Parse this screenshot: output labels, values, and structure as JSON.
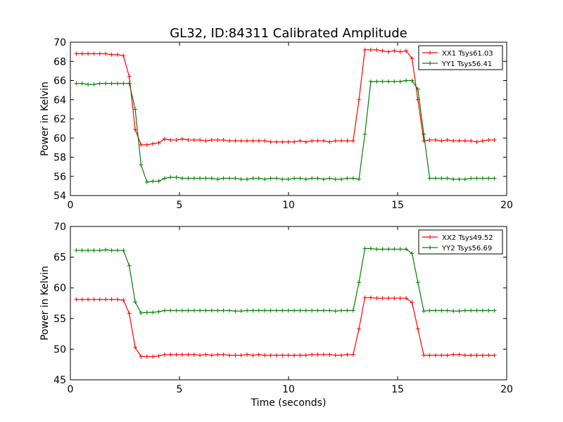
{
  "title": "GL32, ID:84311 Calibrated Amplitude",
  "chart_data": [
    {
      "type": "line",
      "xlabel": "",
      "ylabel": "Power in Kelvin",
      "xlim": [
        0,
        20
      ],
      "ylim": [
        54,
        70
      ],
      "x_ticks": [
        "0",
        "5",
        "10",
        "15",
        "20"
      ],
      "y_ticks": [
        "54",
        "56",
        "58",
        "60",
        "62",
        "64",
        "66",
        "68",
        "70"
      ],
      "grid": false,
      "legend_position": "top-right",
      "x": [
        0.27,
        0.54,
        0.81,
        1.08,
        1.35,
        1.62,
        1.89,
        2.16,
        2.43,
        2.7,
        2.97,
        3.24,
        3.51,
        3.78,
        4.05,
        4.32,
        4.59,
        4.86,
        5.13,
        5.4,
        5.67,
        5.94,
        6.21,
        6.48,
        6.75,
        7.02,
        7.29,
        7.56,
        7.83,
        8.1,
        8.37,
        8.64,
        8.91,
        9.18,
        9.45,
        9.72,
        9.99,
        10.26,
        10.53,
        10.8,
        11.07,
        11.34,
        11.61,
        11.88,
        12.15,
        12.42,
        12.69,
        12.96,
        13.23,
        13.5,
        13.77,
        14.04,
        14.31,
        14.58,
        14.85,
        15.12,
        15.39,
        15.66,
        15.93,
        16.2,
        16.47,
        16.74,
        17.01,
        17.28,
        17.55,
        17.82,
        18.09,
        18.36,
        18.63,
        18.9,
        19.17,
        19.44
      ],
      "series": [
        {
          "name": "XX1 Tsys61.03",
          "color": "#ff0000",
          "values": [
            68.8,
            68.8,
            68.8,
            68.8,
            68.8,
            68.8,
            68.7,
            68.7,
            68.6,
            66.4,
            60.9,
            59.3,
            59.3,
            59.4,
            59.5,
            59.9,
            59.8,
            59.8,
            59.9,
            59.8,
            59.8,
            59.8,
            59.7,
            59.8,
            59.8,
            59.8,
            59.7,
            59.7,
            59.7,
            59.7,
            59.7,
            59.7,
            59.7,
            59.6,
            59.6,
            59.6,
            59.6,
            59.6,
            59.7,
            59.6,
            59.7,
            59.7,
            59.7,
            59.6,
            59.7,
            59.7,
            59.7,
            59.7,
            64.0,
            69.2,
            69.2,
            69.2,
            69.1,
            69.0,
            69.1,
            69.0,
            69.1,
            68.3,
            64.0,
            59.7,
            59.8,
            59.8,
            59.7,
            59.8,
            59.7,
            59.7,
            59.7,
            59.7,
            59.6,
            59.7,
            59.8,
            59.8
          ]
        },
        {
          "name": "YY1 Tsys56.41",
          "color": "#008000",
          "values": [
            65.7,
            65.7,
            65.6,
            65.6,
            65.7,
            65.7,
            65.7,
            65.7,
            65.7,
            65.7,
            63.0,
            57.2,
            55.4,
            55.5,
            55.5,
            55.8,
            55.9,
            55.9,
            55.8,
            55.8,
            55.8,
            55.8,
            55.8,
            55.8,
            55.7,
            55.8,
            55.8,
            55.8,
            55.7,
            55.7,
            55.8,
            55.8,
            55.7,
            55.8,
            55.8,
            55.7,
            55.7,
            55.8,
            55.8,
            55.7,
            55.8,
            55.8,
            55.7,
            55.8,
            55.7,
            55.7,
            55.8,
            55.8,
            55.7,
            60.4,
            65.9,
            65.9,
            65.9,
            65.9,
            65.9,
            65.9,
            66.0,
            66.0,
            65.1,
            60.4,
            55.8,
            55.8,
            55.8,
            55.8,
            55.7,
            55.7,
            55.7,
            55.8,
            55.8,
            55.8,
            55.8,
            55.8
          ]
        }
      ]
    },
    {
      "type": "line",
      "xlabel": "Time (seconds)",
      "ylabel": "Power in Kelvin",
      "xlim": [
        0,
        20
      ],
      "ylim": [
        45,
        70
      ],
      "x_ticks": [
        "0",
        "5",
        "10",
        "15",
        "20"
      ],
      "y_ticks": [
        "45",
        "50",
        "55",
        "60",
        "65",
        "70"
      ],
      "grid": false,
      "legend_position": "top-right",
      "x": [
        0.27,
        0.54,
        0.81,
        1.08,
        1.35,
        1.62,
        1.89,
        2.16,
        2.43,
        2.7,
        2.97,
        3.24,
        3.51,
        3.78,
        4.05,
        4.32,
        4.59,
        4.86,
        5.13,
        5.4,
        5.67,
        5.94,
        6.21,
        6.48,
        6.75,
        7.02,
        7.29,
        7.56,
        7.83,
        8.1,
        8.37,
        8.64,
        8.91,
        9.18,
        9.45,
        9.72,
        9.99,
        10.26,
        10.53,
        10.8,
        11.07,
        11.34,
        11.61,
        11.88,
        12.15,
        12.42,
        12.69,
        12.96,
        13.23,
        13.5,
        13.77,
        14.04,
        14.31,
        14.58,
        14.85,
        15.12,
        15.39,
        15.66,
        15.93,
        16.2,
        16.47,
        16.74,
        17.01,
        17.28,
        17.55,
        17.82,
        18.09,
        18.36,
        18.63,
        18.9,
        19.17,
        19.44
      ],
      "series": [
        {
          "name": "XX2 Tsys49.52",
          "color": "#ff0000",
          "values": [
            58.1,
            58.1,
            58.1,
            58.1,
            58.1,
            58.1,
            58.1,
            58.1,
            58.0,
            55.8,
            50.3,
            48.8,
            48.8,
            48.8,
            48.9,
            49.1,
            49.1,
            49.1,
            49.1,
            49.1,
            49.1,
            49.0,
            49.1,
            49.0,
            49.1,
            49.1,
            49.0,
            49.0,
            49.0,
            49.1,
            49.0,
            49.1,
            49.0,
            49.0,
            49.0,
            49.0,
            49.0,
            49.0,
            49.0,
            49.0,
            49.1,
            49.1,
            49.1,
            49.1,
            49.0,
            49.0,
            49.1,
            49.1,
            53.3,
            58.4,
            58.4,
            58.3,
            58.3,
            58.3,
            58.3,
            58.3,
            58.3,
            57.6,
            53.3,
            49.0,
            49.0,
            49.0,
            49.0,
            49.0,
            49.1,
            49.1,
            49.0,
            49.0,
            49.0,
            49.0,
            49.0,
            49.0
          ]
        },
        {
          "name": "YY2 Tsys56.69",
          "color": "#008000",
          "values": [
            66.1,
            66.1,
            66.1,
            66.1,
            66.1,
            66.2,
            66.1,
            66.1,
            66.1,
            63.6,
            57.7,
            55.9,
            56.0,
            56.0,
            56.1,
            56.3,
            56.3,
            56.3,
            56.3,
            56.3,
            56.3,
            56.3,
            56.3,
            56.3,
            56.3,
            56.3,
            56.3,
            56.2,
            56.2,
            56.3,
            56.3,
            56.3,
            56.3,
            56.3,
            56.3,
            56.3,
            56.3,
            56.3,
            56.3,
            56.3,
            56.3,
            56.3,
            56.3,
            56.3,
            56.2,
            56.3,
            56.3,
            56.3,
            60.9,
            66.4,
            66.4,
            66.3,
            66.3,
            66.3,
            66.3,
            66.3,
            66.3,
            65.6,
            60.9,
            56.2,
            56.3,
            56.3,
            56.3,
            56.3,
            56.2,
            56.2,
            56.3,
            56.3,
            56.3,
            56.3,
            56.3,
            56.3
          ]
        }
      ]
    }
  ]
}
